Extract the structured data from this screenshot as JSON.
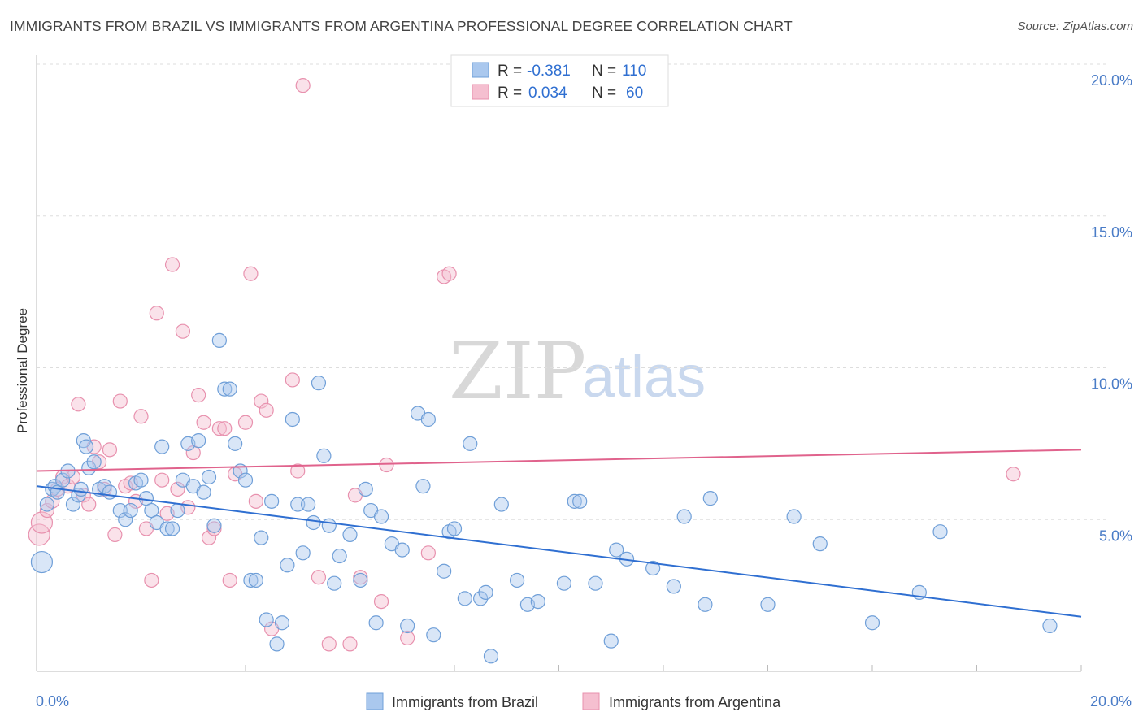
{
  "header": {
    "title": "IMMIGRANTS FROM BRAZIL VS IMMIGRANTS FROM ARGENTINA PROFESSIONAL DEGREE CORRELATION CHART",
    "source": "Source: ZipAtlas.com"
  },
  "watermark": {
    "zip": "ZIP",
    "atlas": "atlas"
  },
  "legend": {
    "r_label": "R =",
    "n_label": "N =",
    "brazil_r": "-0.381",
    "brazil_n": "110",
    "argentina_r": "0.034",
    "argentina_n": "60"
  },
  "chart_data": {
    "type": "scatter",
    "title": "IMMIGRANTS FROM BRAZIL VS IMMIGRANTS FROM ARGENTINA PROFESSIONAL DEGREE CORRELATION CHART",
    "xlabel": "",
    "ylabel": "Professional Degree",
    "xlim": [
      0,
      20
    ],
    "ylim": [
      0,
      20
    ],
    "x_tick_labels": [
      "0.0%",
      "20.0%"
    ],
    "y_ticks": [
      {
        "value": 5,
        "label": "5.0%"
      },
      {
        "value": 10,
        "label": "10.0%"
      },
      {
        "value": 15,
        "label": "15.0%"
      },
      {
        "value": 20,
        "label": "20.0%"
      }
    ],
    "colors": {
      "brazil_fill": "#aac8ee",
      "brazil_stroke": "#6f9fd8",
      "brazil_line": "#2f6fd1",
      "argentina_fill": "#f5bfd0",
      "argentina_stroke": "#e891ae",
      "argentina_line": "#e0628c"
    },
    "series": [
      {
        "name": "Immigrants from Brazil",
        "r": -0.381,
        "n": 110,
        "trend": {
          "x": [
            0,
            20
          ],
          "y": [
            6.1,
            1.8
          ]
        },
        "points": [
          [
            0.1,
            3.6
          ],
          [
            0.2,
            5.5
          ],
          [
            0.3,
            6.0
          ],
          [
            0.35,
            6.1
          ],
          [
            0.4,
            5.9
          ],
          [
            0.5,
            6.3
          ],
          [
            0.6,
            6.6
          ],
          [
            0.7,
            5.5
          ],
          [
            0.8,
            5.8
          ],
          [
            0.85,
            6.0
          ],
          [
            0.9,
            7.6
          ],
          [
            0.95,
            7.4
          ],
          [
            1.0,
            6.7
          ],
          [
            1.1,
            6.9
          ],
          [
            1.2,
            6.0
          ],
          [
            1.3,
            6.1
          ],
          [
            1.4,
            5.9
          ],
          [
            1.6,
            5.3
          ],
          [
            1.7,
            5.0
          ],
          [
            1.8,
            5.3
          ],
          [
            1.9,
            6.2
          ],
          [
            2.0,
            6.3
          ],
          [
            2.1,
            5.7
          ],
          [
            2.2,
            5.3
          ],
          [
            2.3,
            4.9
          ],
          [
            2.4,
            7.4
          ],
          [
            2.5,
            4.7
          ],
          [
            2.6,
            4.7
          ],
          [
            2.7,
            5.3
          ],
          [
            2.8,
            6.3
          ],
          [
            2.9,
            7.5
          ],
          [
            3.0,
            6.1
          ],
          [
            3.1,
            7.6
          ],
          [
            3.2,
            5.9
          ],
          [
            3.3,
            6.4
          ],
          [
            3.4,
            4.8
          ],
          [
            3.5,
            10.9
          ],
          [
            3.6,
            9.3
          ],
          [
            3.7,
            9.3
          ],
          [
            3.8,
            7.5
          ],
          [
            3.9,
            6.6
          ],
          [
            4.0,
            6.3
          ],
          [
            4.1,
            3.0
          ],
          [
            4.2,
            3.0
          ],
          [
            4.3,
            4.4
          ],
          [
            4.4,
            1.7
          ],
          [
            4.5,
            5.6
          ],
          [
            4.6,
            0.9
          ],
          [
            4.7,
            1.6
          ],
          [
            4.8,
            3.5
          ],
          [
            4.9,
            8.3
          ],
          [
            5.0,
            5.5
          ],
          [
            5.1,
            3.9
          ],
          [
            5.2,
            5.5
          ],
          [
            5.3,
            4.9
          ],
          [
            5.4,
            9.5
          ],
          [
            5.5,
            7.1
          ],
          [
            5.6,
            4.8
          ],
          [
            5.7,
            2.9
          ],
          [
            5.8,
            3.8
          ],
          [
            6.0,
            4.5
          ],
          [
            6.2,
            3.0
          ],
          [
            6.3,
            6.0
          ],
          [
            6.4,
            5.3
          ],
          [
            6.5,
            1.6
          ],
          [
            6.6,
            5.1
          ],
          [
            6.8,
            4.2
          ],
          [
            7.0,
            4.0
          ],
          [
            7.1,
            1.5
          ],
          [
            7.3,
            8.5
          ],
          [
            7.4,
            6.1
          ],
          [
            7.5,
            8.3
          ],
          [
            7.6,
            1.2
          ],
          [
            7.8,
            3.3
          ],
          [
            7.9,
            4.6
          ],
          [
            8.0,
            4.7
          ],
          [
            8.2,
            2.4
          ],
          [
            8.3,
            7.5
          ],
          [
            8.5,
            2.4
          ],
          [
            8.6,
            2.6
          ],
          [
            8.7,
            0.5
          ],
          [
            8.9,
            5.5
          ],
          [
            9.2,
            3.0
          ],
          [
            9.4,
            2.2
          ],
          [
            9.6,
            2.3
          ],
          [
            10.1,
            2.9
          ],
          [
            10.3,
            5.6
          ],
          [
            10.4,
            5.6
          ],
          [
            10.7,
            2.9
          ],
          [
            11.0,
            1.0
          ],
          [
            11.1,
            4.0
          ],
          [
            11.3,
            3.7
          ],
          [
            11.8,
            3.4
          ],
          [
            12.2,
            2.8
          ],
          [
            12.4,
            5.1
          ],
          [
            12.8,
            2.2
          ],
          [
            12.9,
            5.7
          ],
          [
            14.0,
            2.2
          ],
          [
            14.5,
            5.1
          ],
          [
            15.0,
            4.2
          ],
          [
            16.0,
            1.6
          ],
          [
            16.9,
            2.6
          ],
          [
            17.3,
            4.6
          ],
          [
            19.4,
            1.5
          ]
        ]
      },
      {
        "name": "Immigrants from Argentina",
        "r": 0.034,
        "n": 60,
        "trend": {
          "x": [
            0,
            20
          ],
          "y": [
            6.6,
            7.3
          ]
        },
        "points": [
          [
            0.05,
            4.5
          ],
          [
            0.1,
            4.9
          ],
          [
            0.2,
            5.3
          ],
          [
            0.3,
            5.6
          ],
          [
            0.4,
            6.0
          ],
          [
            0.5,
            6.4
          ],
          [
            0.6,
            6.1
          ],
          [
            0.7,
            6.4
          ],
          [
            0.8,
            8.8
          ],
          [
            0.9,
            5.8
          ],
          [
            1.0,
            5.5
          ],
          [
            1.1,
            7.4
          ],
          [
            1.2,
            6.9
          ],
          [
            1.3,
            6.0
          ],
          [
            1.4,
            7.3
          ],
          [
            1.5,
            4.5
          ],
          [
            1.6,
            8.9
          ],
          [
            1.7,
            6.1
          ],
          [
            1.8,
            6.2
          ],
          [
            1.9,
            5.6
          ],
          [
            2.0,
            8.4
          ],
          [
            2.1,
            4.7
          ],
          [
            2.2,
            3.0
          ],
          [
            2.3,
            11.8
          ],
          [
            2.4,
            6.3
          ],
          [
            2.5,
            5.2
          ],
          [
            2.6,
            13.4
          ],
          [
            2.7,
            6.0
          ],
          [
            2.8,
            11.2
          ],
          [
            2.9,
            5.4
          ],
          [
            3.0,
            7.2
          ],
          [
            3.1,
            9.1
          ],
          [
            3.2,
            8.2
          ],
          [
            3.3,
            4.4
          ],
          [
            3.4,
            4.7
          ],
          [
            3.5,
            8.0
          ],
          [
            3.6,
            8.0
          ],
          [
            3.7,
            3.0
          ],
          [
            3.8,
            6.5
          ],
          [
            4.0,
            8.2
          ],
          [
            4.1,
            13.1
          ],
          [
            4.2,
            5.6
          ],
          [
            4.3,
            8.9
          ],
          [
            4.4,
            8.6
          ],
          [
            4.5,
            1.4
          ],
          [
            4.9,
            9.6
          ],
          [
            5.0,
            6.6
          ],
          [
            5.1,
            19.3
          ],
          [
            5.4,
            3.1
          ],
          [
            5.6,
            0.9
          ],
          [
            6.0,
            0.9
          ],
          [
            6.1,
            5.8
          ],
          [
            6.2,
            3.1
          ],
          [
            6.6,
            2.3
          ],
          [
            6.7,
            6.8
          ],
          [
            7.1,
            1.1
          ],
          [
            7.5,
            3.9
          ],
          [
            7.8,
            13.0
          ],
          [
            7.9,
            13.1
          ],
          [
            18.7,
            6.5
          ]
        ]
      }
    ]
  },
  "bottom_legend": {
    "brazil": "Immigrants from Brazil",
    "argentina": "Immigrants from Argentina"
  }
}
